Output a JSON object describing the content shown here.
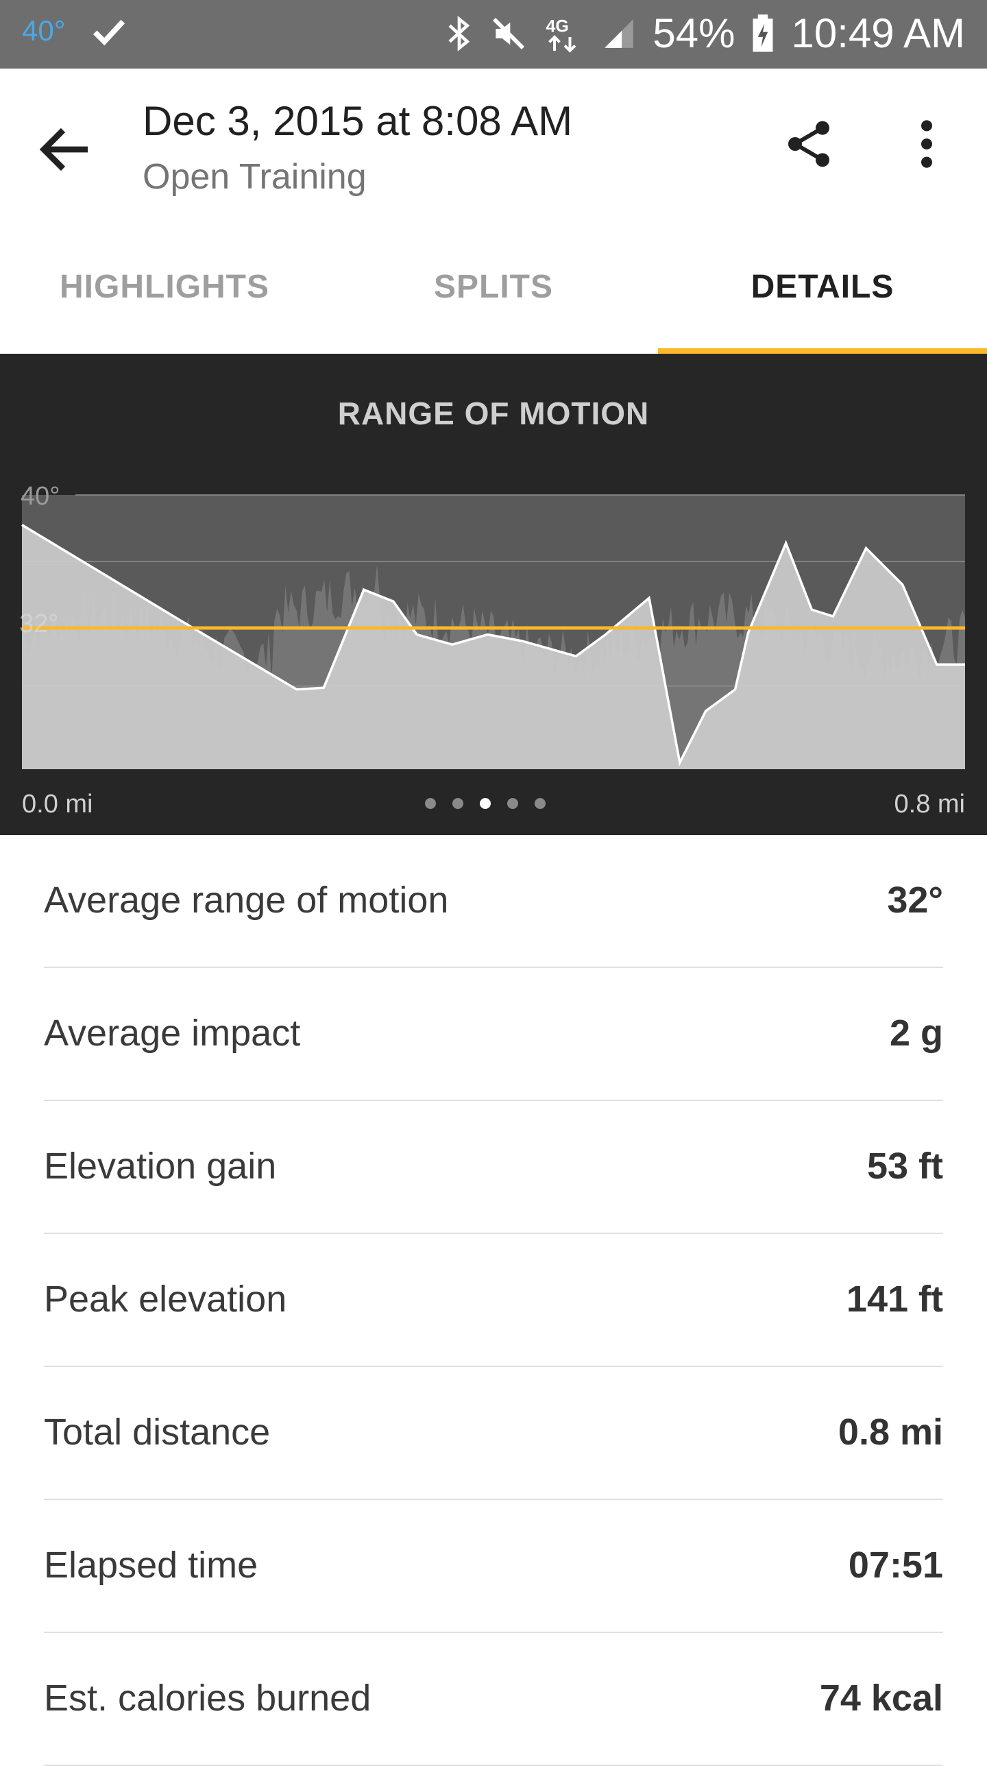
{
  "status_bar": {
    "temperature": "40°",
    "battery": "54%",
    "time": "10:49 AM",
    "icons": [
      "check-icon",
      "bluetooth-icon",
      "mute-icon",
      "4g-lte-icon",
      "signal-icon",
      "battery-charging-icon"
    ]
  },
  "header": {
    "title": "Dec 3, 2015 at 8:08 AM",
    "subtitle": "Open Training",
    "icons": [
      "back-arrow-icon",
      "share-icon",
      "more-vert-icon"
    ]
  },
  "tabs": [
    {
      "label": "HIGHLIGHTS",
      "active": false
    },
    {
      "label": "SPLITS",
      "active": false
    },
    {
      "label": "DETAILS",
      "active": true
    }
  ],
  "colors": {
    "accent": "#f9b928",
    "chart_bg": "#262626",
    "status_bar": "#6e6e6e"
  },
  "chart_data": {
    "type": "area",
    "title": "RANGE OF MOTION",
    "y_tick_labels": [
      "40°",
      "32°"
    ],
    "x_start_label": "0.0 mi",
    "x_end_label": "0.8 mi",
    "x_range": [
      0.0,
      0.8
    ],
    "y_range": [
      23.5,
      40
    ],
    "average_line": 32,
    "grid": true,
    "series": [
      {
        "x": [
          0.0,
          0.0,
          0.145,
          0.233,
          0.256,
          0.29,
          0.315,
          0.335,
          0.365,
          0.395,
          0.425,
          0.47,
          0.495,
          0.532,
          0.558,
          0.58,
          0.605,
          0.616,
          0.648,
          0.67,
          0.688,
          0.716,
          0.747,
          0.776,
          0.8
        ],
        "y": [
          23.5,
          38.2,
          32.0,
          28.3,
          28.4,
          34.3,
          33.6,
          31.6,
          31.0,
          31.6,
          31.2,
          30.3,
          31.6,
          33.8,
          23.9,
          27.0,
          28.3,
          31.7,
          37.1,
          33.1,
          32.7,
          36.8,
          34.6,
          29.8,
          29.8
        ]
      }
    ],
    "page_indicator": {
      "count": 5,
      "active": 3
    }
  },
  "details": [
    {
      "label": "Average range of motion",
      "value": "32°"
    },
    {
      "label": "Average impact",
      "value": "2 g"
    },
    {
      "label": "Elevation gain",
      "value": "53 ft"
    },
    {
      "label": "Peak elevation",
      "value": "141 ft"
    },
    {
      "label": "Total distance",
      "value": "0.8 mi"
    },
    {
      "label": "Elapsed time",
      "value": "07:51"
    },
    {
      "label": "Est. calories burned",
      "value": "74 kcal"
    }
  ]
}
